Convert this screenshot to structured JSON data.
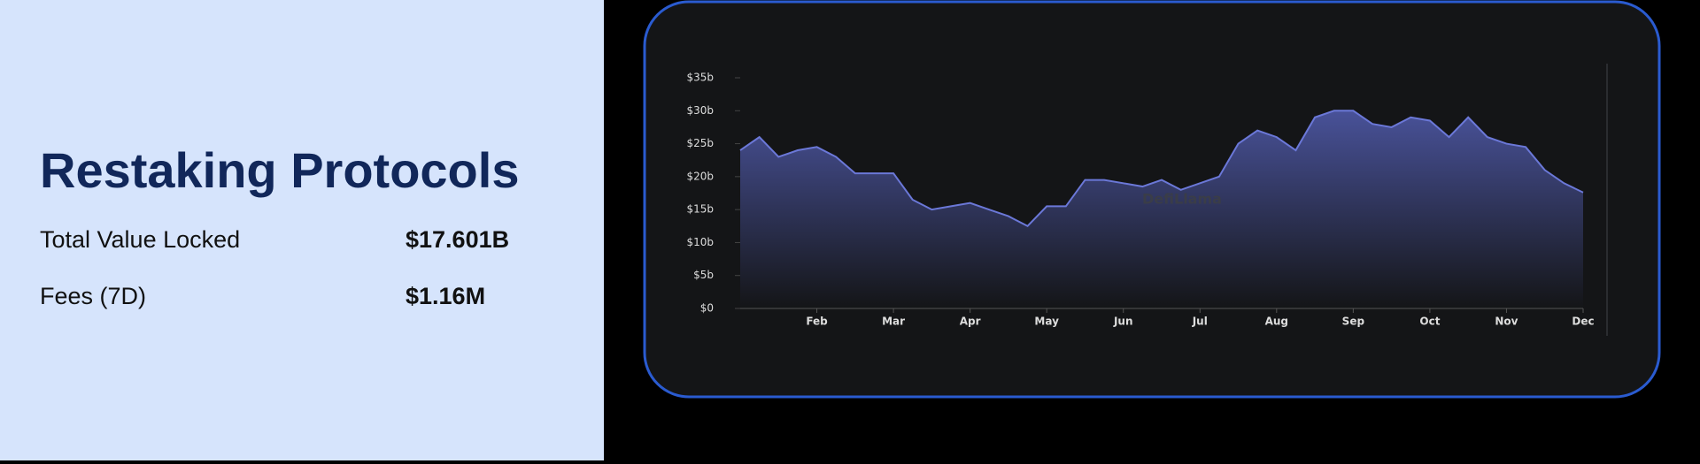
{
  "header": {
    "title": "Restaking Protocols"
  },
  "stats": [
    {
      "label": "Total Value Locked",
      "value": "$17.601B"
    },
    {
      "label": "Fees (7D)",
      "value": "$1.16M"
    }
  ],
  "chart_data": {
    "type": "area",
    "watermark": "DefiLlama",
    "color": "#6b78d8",
    "categories": [
      null,
      null,
      null,
      null,
      "Feb",
      null,
      null,
      null,
      "Mar",
      null,
      null,
      null,
      "Apr",
      null,
      null,
      null,
      "May",
      null,
      null,
      null,
      "Jun",
      null,
      null,
      null,
      "Jul",
      null,
      null,
      null,
      "Aug",
      null,
      null,
      null,
      "Sep",
      null,
      null,
      null,
      "Oct",
      null,
      null,
      null,
      "Nov",
      null,
      null,
      null,
      "Dec"
    ],
    "values": [
      24,
      26,
      23,
      24,
      24.5,
      23,
      20.5,
      20.5,
      20.5,
      16.5,
      15,
      15.5,
      16,
      15,
      14,
      12.5,
      15.5,
      15.5,
      19.5,
      19.5,
      19,
      18.5,
      19.5,
      18,
      19,
      20,
      25,
      27,
      26,
      24,
      29,
      30,
      30,
      28,
      27.5,
      29,
      28.5,
      26,
      29,
      26,
      25,
      24.5,
      21,
      19,
      17.6
    ],
    "ylim": [
      0,
      35
    ],
    "yticks": [
      {
        "value": 0,
        "label": "$0"
      },
      {
        "value": 5,
        "label": "$5b"
      },
      {
        "value": 10,
        "label": "$10b"
      },
      {
        "value": 15,
        "label": "$15b"
      },
      {
        "value": 20,
        "label": "$20b"
      },
      {
        "value": 25,
        "label": "$25b"
      },
      {
        "value": 30,
        "label": "$30b"
      },
      {
        "value": 35,
        "label": "$35b"
      }
    ]
  }
}
